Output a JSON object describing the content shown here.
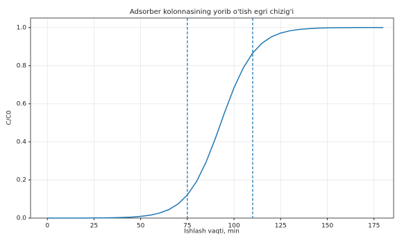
{
  "chart_data": {
    "type": "line",
    "title": "Adsorber kolonnasining yorib o'tish egri chizig'i",
    "x_label": "Ishlash vaqti, min",
    "y_label": "C/C0",
    "x": [
      0,
      5,
      10,
      15,
      20,
      25,
      30,
      35,
      40,
      45,
      50,
      55,
      60,
      65,
      70,
      75,
      80,
      85,
      90,
      95,
      100,
      105,
      110,
      115,
      120,
      125,
      130,
      135,
      140,
      145,
      150,
      155,
      160,
      165,
      170,
      175,
      180
    ],
    "series": [
      {
        "name": "C/C0",
        "color": "#1f77b4",
        "values": [
          0,
          0,
          0,
          0,
          0,
          0.001,
          0.001,
          0.002,
          0.003,
          0.005,
          0.009,
          0.015,
          0.026,
          0.044,
          0.074,
          0.121,
          0.193,
          0.293,
          0.418,
          0.555,
          0.684,
          0.789,
          0.866,
          0.918,
          0.951,
          0.971,
          0.983,
          0.99,
          0.994,
          0.997,
          0.998,
          0.999,
          0.999,
          1,
          1,
          1,
          1
        ]
      }
    ],
    "vlines": [
      75,
      110
    ],
    "vline_color": "#1f77b4",
    "xlim": [
      -9,
      185.5
    ],
    "ylim": [
      0,
      1.05
    ],
    "xticks": [
      0,
      25,
      50,
      75,
      100,
      125,
      150,
      175
    ],
    "yticks": [
      {
        "value": 0,
        "label": "0.0"
      },
      {
        "value": 0.2,
        "label": "0.2"
      },
      {
        "value": 0.4,
        "label": "0.4"
      },
      {
        "value": 0.6,
        "label": "0.6"
      },
      {
        "value": 0.8,
        "label": "0.8"
      },
      {
        "value": 1,
        "label": "1.0"
      }
    ],
    "grid": true
  }
}
